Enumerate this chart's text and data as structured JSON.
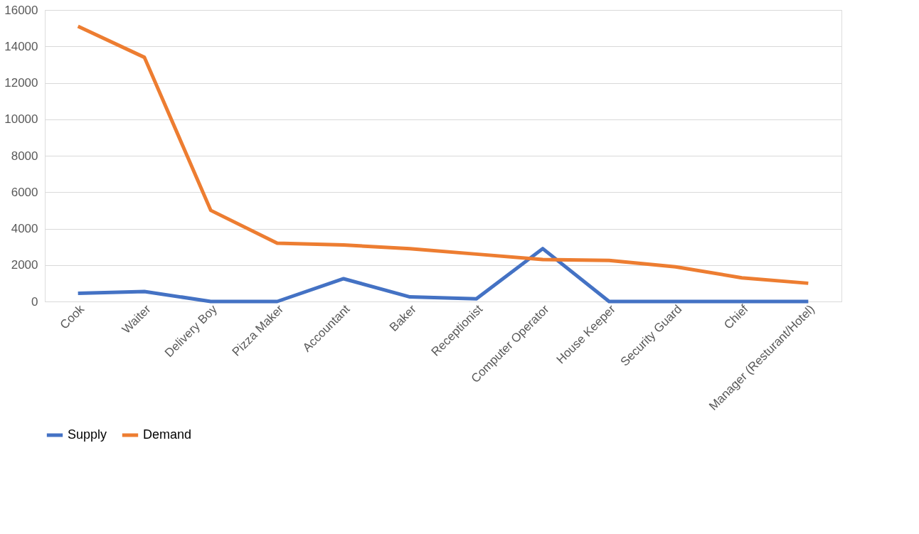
{
  "chart_data": {
    "type": "line",
    "categories": [
      "Cook",
      "Waiter",
      "Delivery Boy",
      "Pizza Maker",
      "Accountant",
      "Baker",
      "Receptionist",
      "Computer Operator",
      "House Keeper",
      "Security Guard",
      "Chief",
      "Manager (Resturant/Hotel)"
    ],
    "series": [
      {
        "name": "Supply",
        "color": "#4472c4",
        "values": [
          450,
          550,
          0,
          0,
          1250,
          250,
          150,
          2900,
          0,
          0,
          0,
          0
        ]
      },
      {
        "name": "Demand",
        "color": "#ed7d31",
        "values": [
          15100,
          13400,
          5000,
          3200,
          3100,
          2900,
          2600,
          2300,
          2250,
          1900,
          1300,
          1000
        ]
      }
    ],
    "ylim": [
      0,
      16000
    ],
    "yticks": [
      0,
      2000,
      4000,
      6000,
      8000,
      10000,
      12000,
      14000,
      16000
    ],
    "grid": "y",
    "legend": "bottom",
    "marker": "none",
    "line_style": "solid"
  }
}
